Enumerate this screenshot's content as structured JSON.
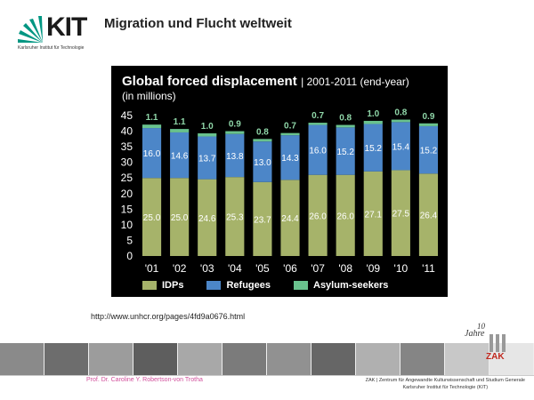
{
  "header": {
    "logo_text": "KIT",
    "logo_subtitle": "Karlsruher Institut für Technologie",
    "title": "Migration und Flucht weltweit"
  },
  "chart_data": {
    "type": "bar",
    "stacked": true,
    "title": "Global forced displacement",
    "subtitle": "| 2001-2011 (end-year)",
    "unit": "(in millions)",
    "categories": [
      "'01",
      "'02",
      "'03",
      "'04",
      "'05",
      "'06",
      "'07",
      "'08",
      "'09",
      "'10",
      "'11"
    ],
    "series": [
      {
        "name": "IDPs",
        "color": "#a6b36a",
        "values": [
          25.0,
          25.0,
          24.6,
          25.3,
          23.7,
          24.4,
          26.0,
          26.0,
          27.1,
          27.5,
          26.4
        ]
      },
      {
        "name": "Refugees",
        "color": "#4c86c8",
        "values": [
          16.0,
          14.6,
          13.7,
          13.8,
          13.0,
          14.3,
          16.0,
          15.2,
          15.2,
          15.4,
          15.2
        ]
      },
      {
        "name": "Asylum-seekers",
        "color": "#69c28d",
        "values": [
          1.1,
          1.1,
          1.0,
          0.9,
          0.8,
          0.7,
          0.7,
          0.8,
          1.0,
          0.8,
          0.9
        ]
      }
    ],
    "ylim": [
      0,
      45
    ],
    "yticks": [
      0,
      5,
      10,
      15,
      20,
      25,
      30,
      35,
      40,
      45
    ],
    "grid": false,
    "legend_position": "bottom"
  },
  "source": "http://www.unhcr.org/pages/4fd9a0676.html",
  "footer": {
    "author": "Prof. Dr. Caroline Y. Robertson-von Trotha",
    "institution_line1": "ZAK | Zentrum für Angewandte Kulturwissenschaft und Studium Generale",
    "institution_line2": "Karlsruher Institut für Technologie (KIT)",
    "badge_years": "10",
    "badge_jahre": "Jahre",
    "badge_zak": "ZAK"
  }
}
